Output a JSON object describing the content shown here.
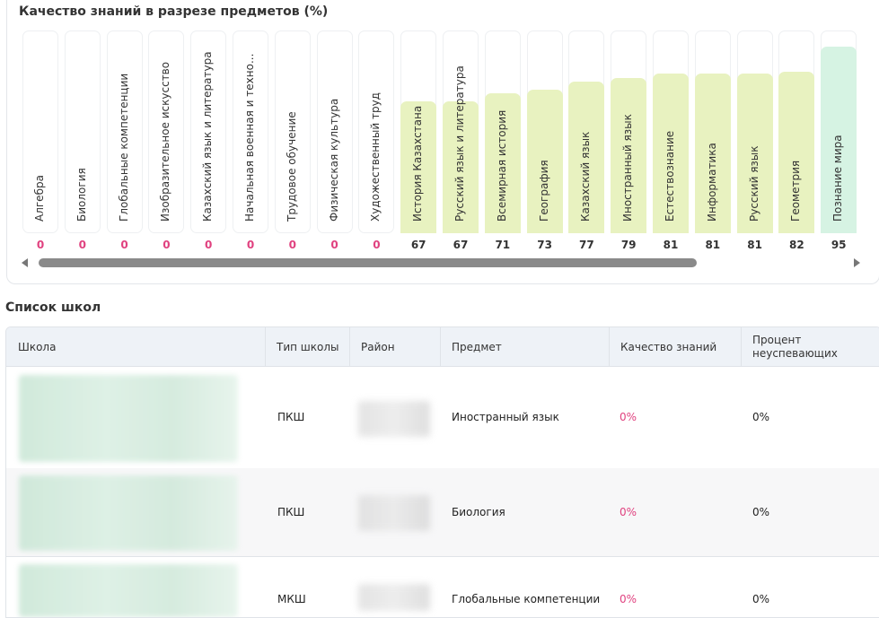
{
  "chart_card": {
    "title": "Качество знаний в разрезе предметов (%)"
  },
  "chart_data": {
    "type": "bar",
    "title": "Качество знаний в разрезе предметов (%)",
    "categories": [
      "Алгебра",
      "Биология",
      "Глобальные компетенции",
      "Изобразительное искусство",
      "Казахский язык и литература",
      "Начальная военная и техно...",
      "Трудовое обучение",
      "Физическая культура",
      "Художественный труд",
      "История Казахстана",
      "Русский язык и литература",
      "Всемирная история",
      "География",
      "Казахский язык",
      "Иностранный язык",
      "Естествознание",
      "Информатика",
      "Русский язык",
      "Геометрия",
      "Познание мира"
    ],
    "values": [
      0,
      0,
      0,
      0,
      0,
      0,
      0,
      0,
      0,
      67,
      67,
      71,
      73,
      77,
      79,
      81,
      81,
      81,
      82,
      95
    ],
    "value_labels": [
      "0",
      "0",
      "0",
      "0",
      "0",
      "0",
      "0",
      "0",
      "0",
      "67",
      "67",
      "71",
      "73",
      "77",
      "79",
      "81",
      "81",
      "81",
      "82",
      "95"
    ],
    "ylim": [
      0,
      100
    ],
    "colors": {
      "zero_value": "#e0417f",
      "value": "#333333",
      "mid_fill": "#e8f2c0",
      "high_fill": "#d6f3e3"
    }
  },
  "schools_section": {
    "title": "Список школ",
    "columns": [
      "Школа",
      "Тип школы",
      "Район",
      "Предмет",
      "Качество знаний",
      "Процент неуспевающих"
    ],
    "rows": [
      {
        "type": "ПКШ",
        "subject": "Иностранный язык",
        "quality": "0%",
        "failing": "0%"
      },
      {
        "type": "ПКШ",
        "subject": "Биология",
        "quality": "0%",
        "failing": "0%"
      },
      {
        "type": "МКШ",
        "subject": "Глобальные компетенции",
        "quality": "0%",
        "failing": "0%"
      }
    ]
  }
}
